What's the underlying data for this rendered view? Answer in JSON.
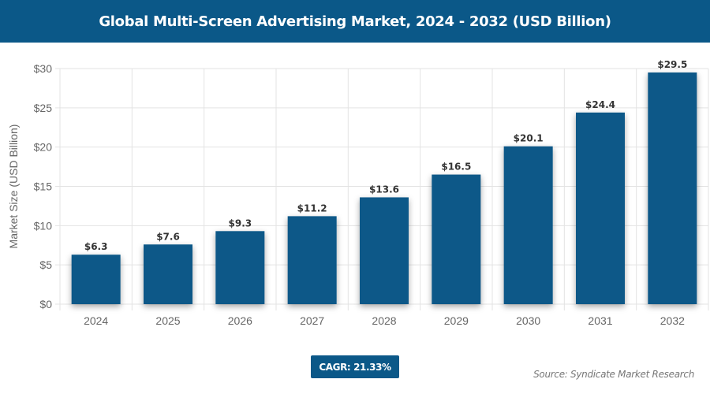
{
  "header": {
    "title": "Global Multi-Screen Advertising Market, 2024 - 2032 (USD Billion)"
  },
  "chart_data": {
    "type": "bar",
    "title": "Global Multi-Screen Advertising Market, 2024 - 2032 (USD Billion)",
    "categories": [
      "2024",
      "2025",
      "2026",
      "2027",
      "2028",
      "2029",
      "2030",
      "2031",
      "2032"
    ],
    "values": [
      6.3,
      7.6,
      9.3,
      11.2,
      13.6,
      16.5,
      20.1,
      24.4,
      29.5
    ],
    "data_labels": [
      "$6.3",
      "$7.6",
      "$9.3",
      "$11.2",
      "$13.6",
      "$16.5",
      "$20.1",
      "$24.4",
      "$29.5"
    ],
    "ylabel": "Market Size (USD Billion)",
    "xlabel": "",
    "ylim": [
      0,
      30
    ],
    "yticks": [
      0,
      5,
      10,
      15,
      20,
      25,
      30
    ],
    "ytick_labels": [
      "$0",
      "$5",
      "$10",
      "$15",
      "$20",
      "$25",
      "$30"
    ],
    "grid": true,
    "bar_color": "#0b5888"
  },
  "footer": {
    "cagr": "CAGR: 21.33%",
    "source": "Source: Syndicate Market Research"
  }
}
